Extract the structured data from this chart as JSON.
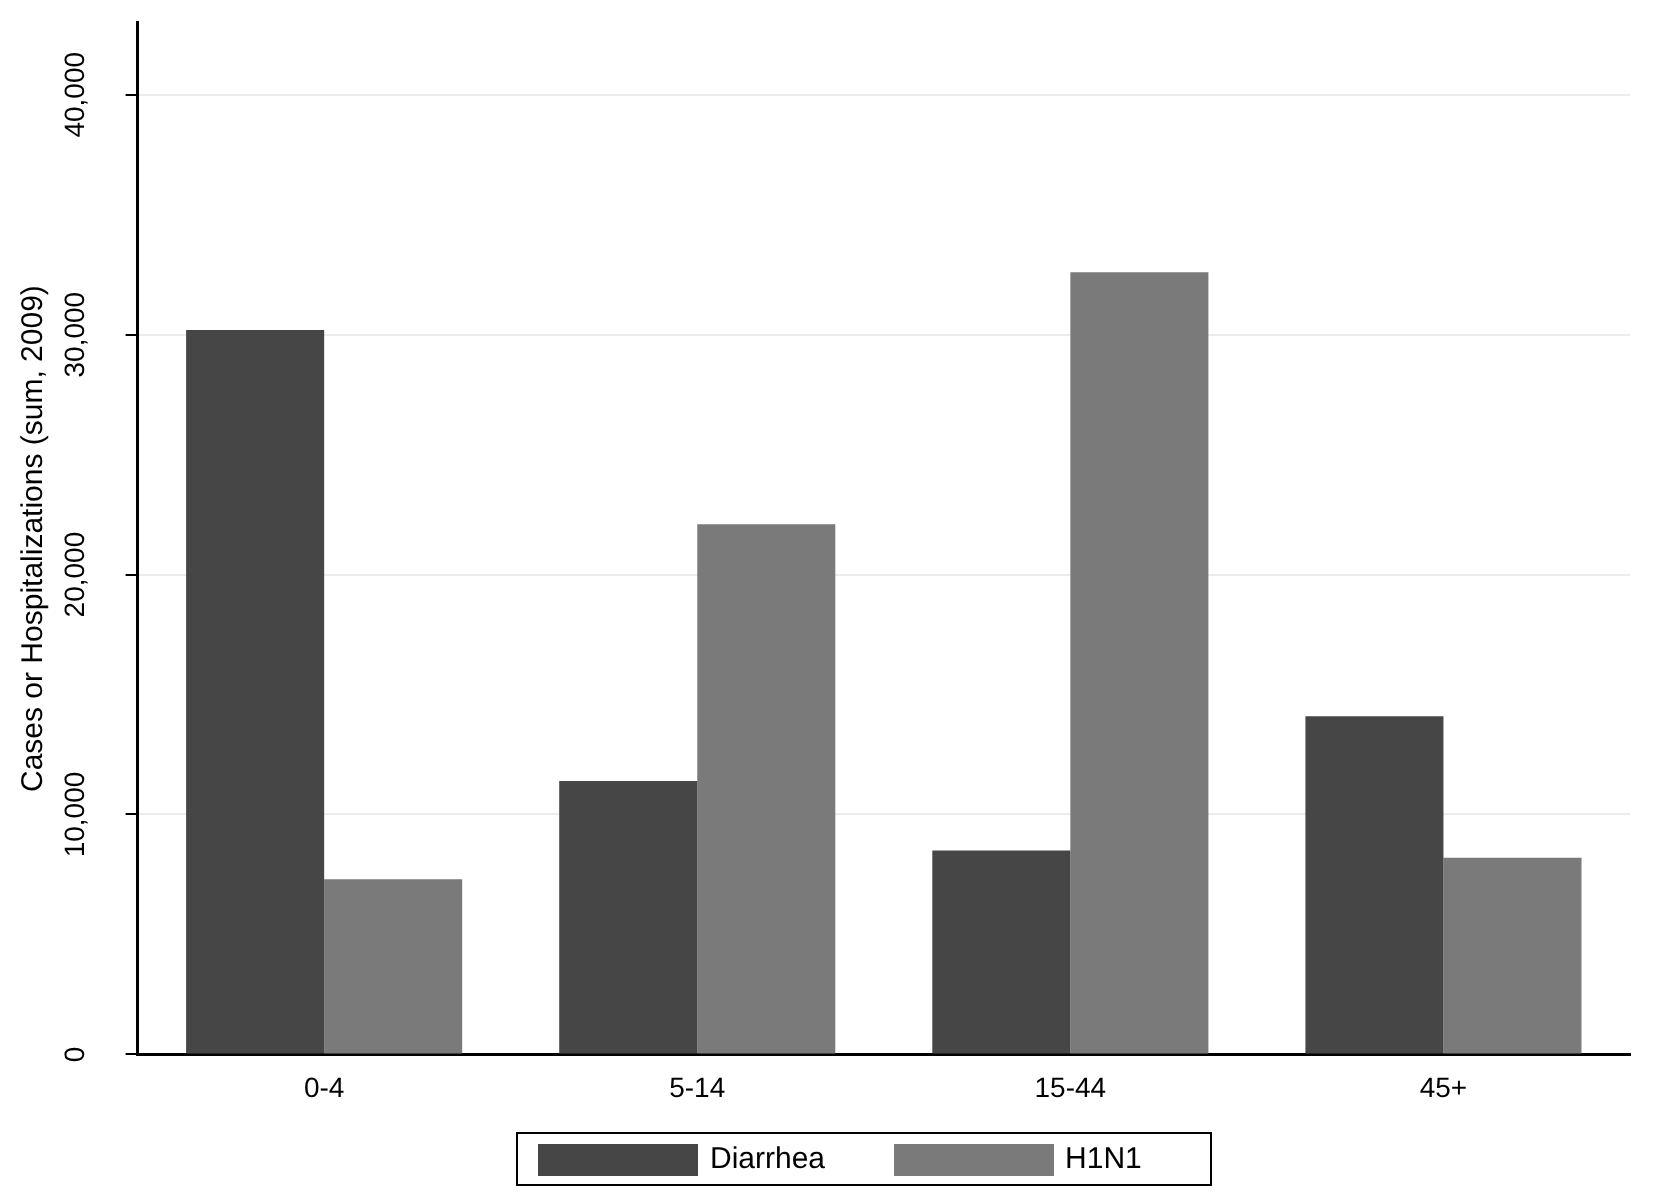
{
  "chart_data": {
    "type": "bar",
    "ylabel": "Cases or Hospitalizations (sum, 2009)",
    "categories": [
      "0-4",
      "5-14",
      "15-44",
      "45+"
    ],
    "series": [
      {
        "name": "Diarrhea",
        "color": "#464646",
        "values": [
          30200,
          11400,
          8500,
          14100
        ]
      },
      {
        "name": "H1N1",
        "color": "#7a7a7a",
        "values": [
          7300,
          22100,
          32600,
          8200
        ]
      }
    ],
    "ylim": [
      0,
      43000
    ],
    "yticks": [
      0,
      {
        "value": 10000,
        "label": "10,000"
      },
      {
        "value": 20000,
        "label": "20,000"
      },
      {
        "value": 30000,
        "label": "30,000"
      },
      {
        "value": 40000,
        "label": "40,000"
      }
    ],
    "grid": "y",
    "legend": "bottom"
  }
}
